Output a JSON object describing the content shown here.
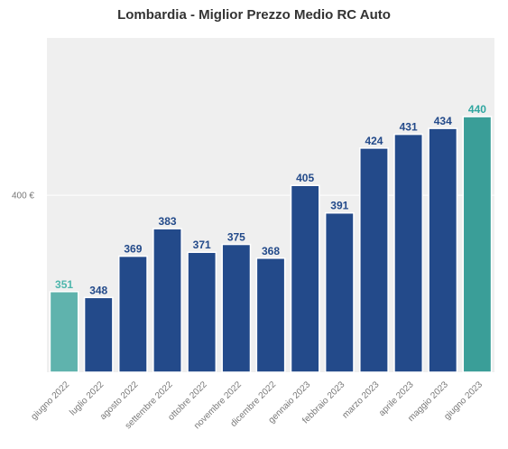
{
  "chart_data": {
    "type": "bar",
    "title": "Lombardia - Miglior Prezzo Medio RC Auto",
    "xlabel": "",
    "ylabel": "",
    "categories": [
      "giugno 2022",
      "luglio 2022",
      "agosto 2022",
      "settembre 2022",
      "ottobre 2022",
      "novembre 2022",
      "dicembre 2022",
      "gennaio 2023",
      "febbraio 2023",
      "marzo 2023",
      "aprile 2023",
      "maggio 2023",
      "giugno 2023"
    ],
    "values": [
      351,
      348,
      369,
      383,
      371,
      375,
      368,
      405,
      391,
      424,
      431,
      434,
      440
    ],
    "value_labels": [
      "351",
      "348",
      "369",
      "383",
      "371",
      "375",
      "368",
      "405",
      "391",
      "424",
      "431",
      "434",
      "440"
    ],
    "ylim": [
      310,
      480
    ],
    "yticks": [
      400
    ],
    "ytick_labels": [
      "400 €"
    ],
    "grid": true,
    "colors": {
      "bar": "#234a8a",
      "bar_first": "#5fb3ad",
      "bar_last": "#3a9e98",
      "label": "#234a8a",
      "label_first": "#4db6ac",
      "label_last": "#2fa6a0",
      "plot_bg": "#efefef",
      "grid": "#ffffff"
    }
  }
}
